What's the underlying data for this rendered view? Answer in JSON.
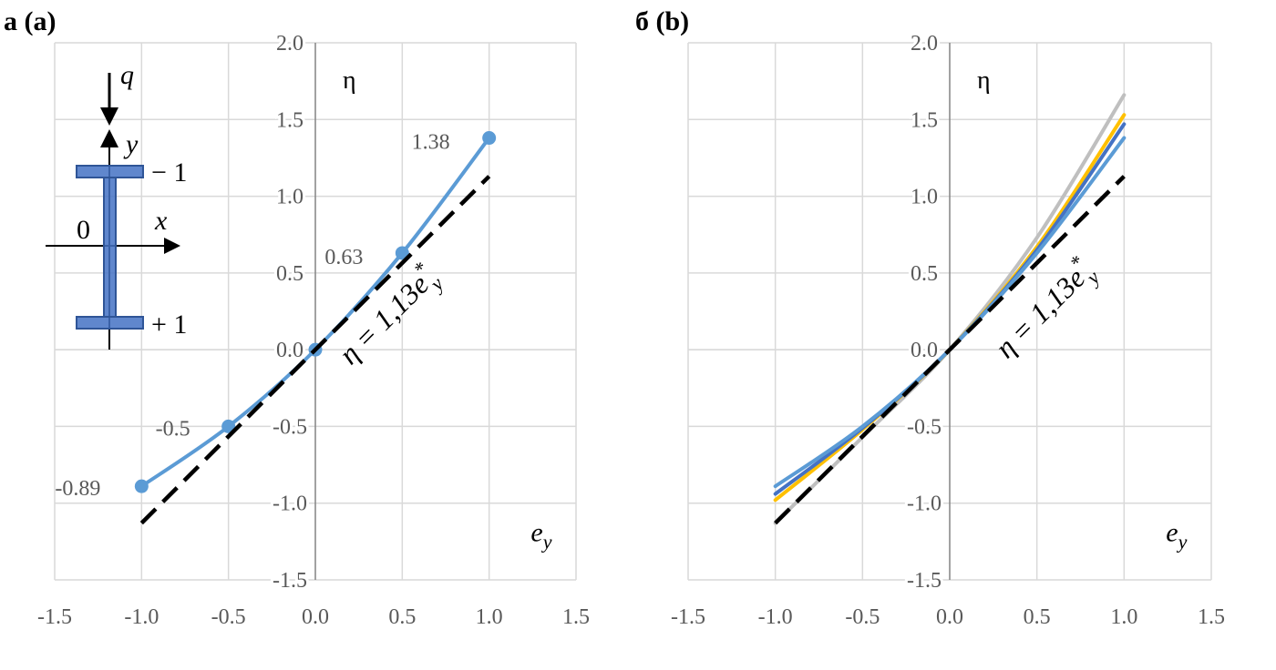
{
  "chart_data": [
    {
      "type": "line",
      "panel_label": "а (a)",
      "xlabel": "e",
      "xlabel_sub": "y",
      "ylabel": "η",
      "xlim": [
        -1.5,
        1.5
      ],
      "ylim": [
        -1.5,
        2.0
      ],
      "xticks": [
        -1.5,
        -1.0,
        -0.5,
        0.0,
        0.5,
        1.0,
        1.5
      ],
      "yticks": [
        -1.5,
        -1.0,
        -0.5,
        0.0,
        0.5,
        1.0,
        1.5,
        2.0
      ],
      "xtick_labels": [
        "-1.5",
        "-1.0",
        "-0.5",
        "0.0",
        "0.5",
        "1.0",
        "1.5"
      ],
      "ytick_labels": [
        "-1.5",
        "-1.0",
        "-0.5",
        "0.0",
        "0.5",
        "1.0",
        "1.5",
        "2.0"
      ],
      "grid": true,
      "series": [
        {
          "style": "solid-markers",
          "color": "#5b9bd5",
          "x": [
            -1.0,
            -0.5,
            0.0,
            0.5,
            1.0
          ],
          "y": [
            -0.89,
            -0.5,
            0.0,
            0.63,
            1.38
          ],
          "data_labels": [
            "-0.89",
            "-0.5",
            "",
            "0.63",
            "1.38"
          ]
        },
        {
          "style": "dashed",
          "color": "#000000",
          "x": [
            -1.0,
            1.0
          ],
          "y": [
            -1.13,
            1.13
          ]
        }
      ],
      "annotation": {
        "formula_prefix": "η = 1,13",
        "formula_var": "e",
        "formula_sup": "*",
        "formula_sub": "y"
      },
      "inset": {
        "load": "q",
        "axis_y": "y",
        "axis_x": "x",
        "origin": "0",
        "top_label": "− 1",
        "bottom_label": "+ 1",
        "color": "#4472c4"
      }
    },
    {
      "type": "line",
      "panel_label": "б (b)",
      "xlabel": "e",
      "xlabel_sub": "y",
      "ylabel": "η",
      "xlim": [
        -1.5,
        1.5
      ],
      "ylim": [
        -1.5,
        2.0
      ],
      "xticks": [
        -1.5,
        -1.0,
        -0.5,
        0.0,
        0.5,
        1.0,
        1.5
      ],
      "yticks": [
        -1.5,
        -1.0,
        -0.5,
        0.0,
        0.5,
        1.0,
        1.5,
        2.0
      ],
      "xtick_labels": [
        "-1.5",
        "-1.0",
        "-0.5",
        "0.0",
        "0.5",
        "1.0",
        "1.5"
      ],
      "ytick_labels": [
        "-1.5",
        "-1.0",
        "-0.5",
        "0.0",
        "0.5",
        "1.0",
        "1.5",
        "2.0"
      ],
      "grid": true,
      "series": [
        {
          "style": "solid",
          "color": "#bfbfbf",
          "x": [
            -1.0,
            -0.5,
            0.0,
            0.5,
            1.0
          ],
          "y": [
            -1.13,
            -0.57,
            0.0,
            0.73,
            1.66
          ]
        },
        {
          "style": "solid",
          "color": "#ffc000",
          "x": [
            -1.0,
            -0.5,
            0.0,
            0.5,
            1.0
          ],
          "y": [
            -0.98,
            -0.52,
            0.0,
            0.67,
            1.53
          ]
        },
        {
          "style": "solid",
          "color": "#4472c4",
          "x": [
            -1.0,
            -0.5,
            0.0,
            0.5,
            1.0
          ],
          "y": [
            -0.94,
            -0.51,
            0.0,
            0.65,
            1.47
          ]
        },
        {
          "style": "solid",
          "color": "#5b9bd5",
          "x": [
            -1.0,
            -0.5,
            0.0,
            0.5,
            1.0
          ],
          "y": [
            -0.89,
            -0.5,
            0.0,
            0.63,
            1.38
          ]
        },
        {
          "style": "dashed",
          "color": "#000000",
          "x": [
            -1.0,
            1.0
          ],
          "y": [
            -1.13,
            1.13
          ]
        }
      ],
      "annotation": {
        "formula_prefix": "η = 1,13",
        "formula_var": "e",
        "formula_sup": "*",
        "formula_sub": "y"
      }
    }
  ]
}
